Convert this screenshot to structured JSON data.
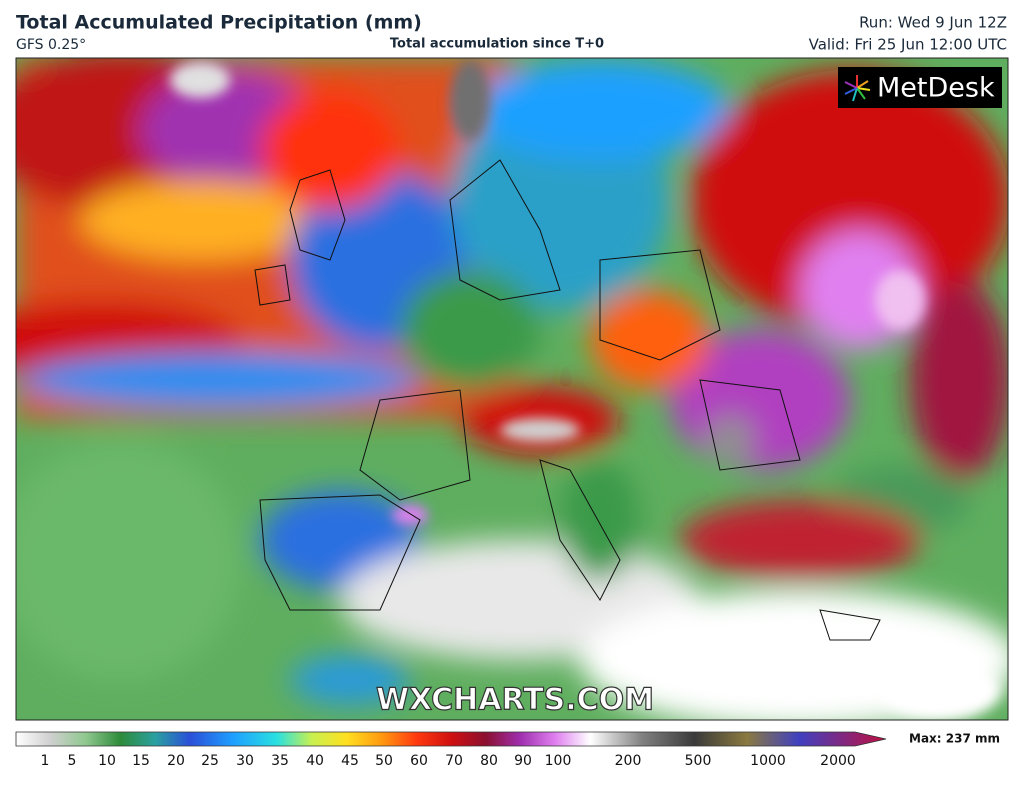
{
  "header": {
    "title": "Total Accumulated Precipitation (mm)",
    "model": "GFS 0.25°",
    "subtitle": "Total accumulation since T+0",
    "run": "Run: Wed 9 Jun 12Z",
    "valid": "Valid: Fri 25 Jun 12:00 UTC"
  },
  "logo": "MetDesk",
  "watermark": "WXCHARTS.COM",
  "colorbar": {
    "ticks": [
      1,
      5,
      10,
      15,
      20,
      25,
      30,
      35,
      40,
      45,
      50,
      60,
      70,
      80,
      90,
      100,
      200,
      500,
      1000,
      2000
    ],
    "max_label": "Max: 237 mm"
  }
}
